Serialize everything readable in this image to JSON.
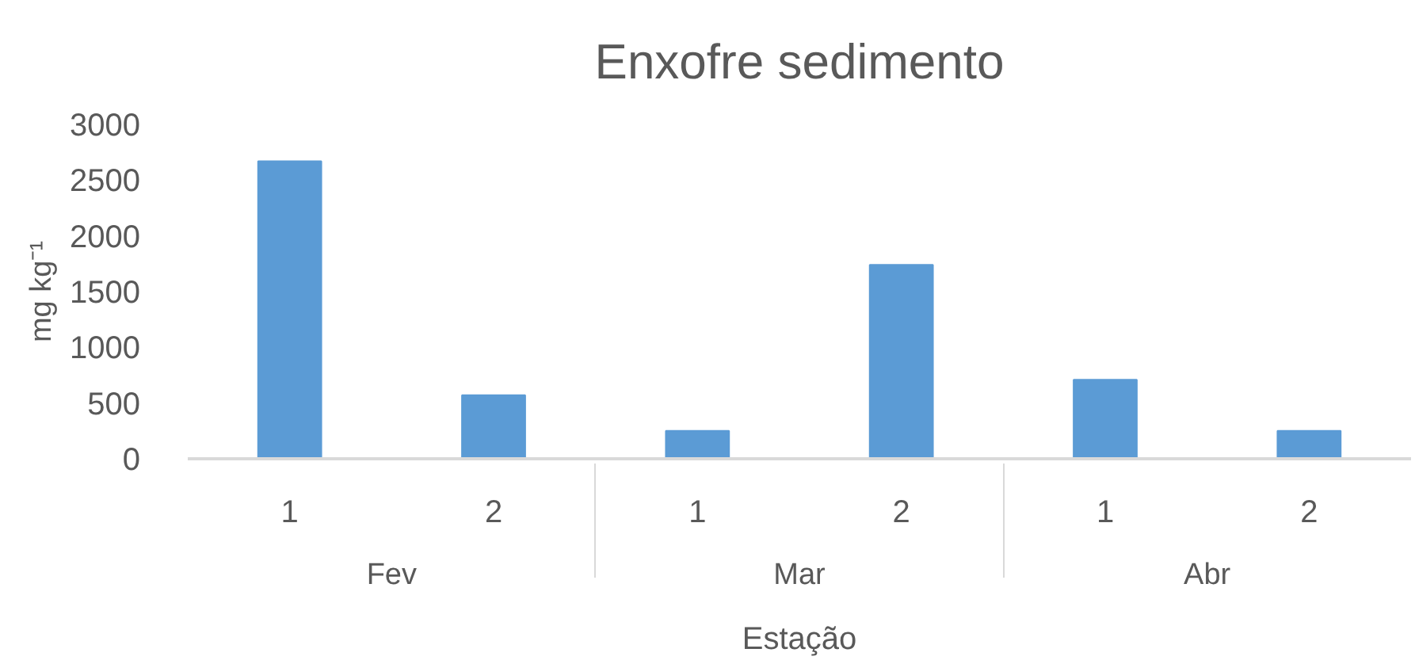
{
  "chart_data": {
    "type": "bar",
    "title": "Enxofre sedimento",
    "xlabel": "Estação",
    "ylabel": "mg kg⁻¹",
    "categories": [
      "1",
      "2",
      "1",
      "2",
      "1",
      "2"
    ],
    "annotations": [
      "Fev",
      "Mar",
      "Abr"
    ],
    "values": [
      2670,
      570,
      250,
      1740,
      710,
      250
    ],
    "color": "#5b9bd5",
    "ylim": [
      0,
      3000
    ],
    "yticks": [
      0,
      500,
      1000,
      1500,
      2000,
      2500,
      3000
    ]
  }
}
